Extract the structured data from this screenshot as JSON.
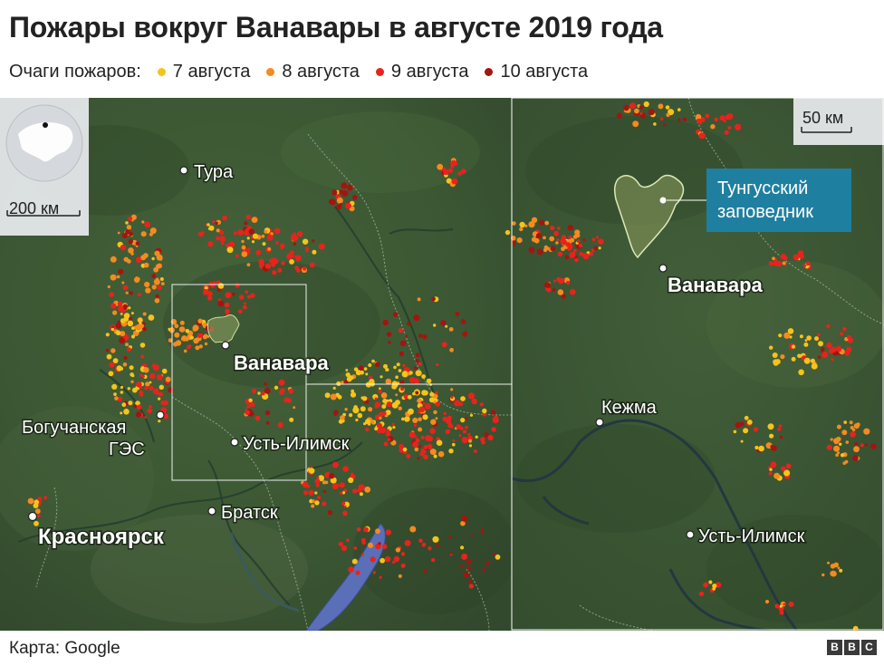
{
  "title": "Пожары вокруг Ванавары в августе 2019 года",
  "legend": {
    "label": "Очаги пожаров:",
    "items": [
      {
        "label": "7 августа",
        "color": "#f7c31a"
      },
      {
        "label": "8 августа",
        "color": "#f58a1f"
      },
      {
        "label": "9 августа",
        "color": "#e8231c"
      },
      {
        "label": "10 августа",
        "color": "#a3150f"
      }
    ]
  },
  "main_map": {
    "scale_label": "200 км",
    "globe_icon": "globe-locator-icon",
    "places": {
      "tura": "Тура",
      "vanavara": "Ванавара",
      "boguchanskaya": "Богучанская",
      "boguchanskaya_2": "ГЭС",
      "ust_ilimsk": "Усть-Илимск",
      "bratsk": "Братск",
      "krasnoyarsk": "Красноярск"
    }
  },
  "inset_map": {
    "scale_label": "50 км",
    "reserve_label_line1": "Тунгусский",
    "reserve_label_line2": "заповедник",
    "places": {
      "vanavara": "Ванавара",
      "kezhma": "Кежма",
      "ust_ilimsk": "Усть-Илимск"
    }
  },
  "colors": {
    "terrain": "#3d5a33",
    "water": "#5b6fb8",
    "reserve_fill": "#8a9a5b",
    "reserve_box": "#1f7fa0"
  },
  "footer": {
    "credit": "Карта: Google",
    "brand": [
      "B",
      "B",
      "C"
    ]
  }
}
